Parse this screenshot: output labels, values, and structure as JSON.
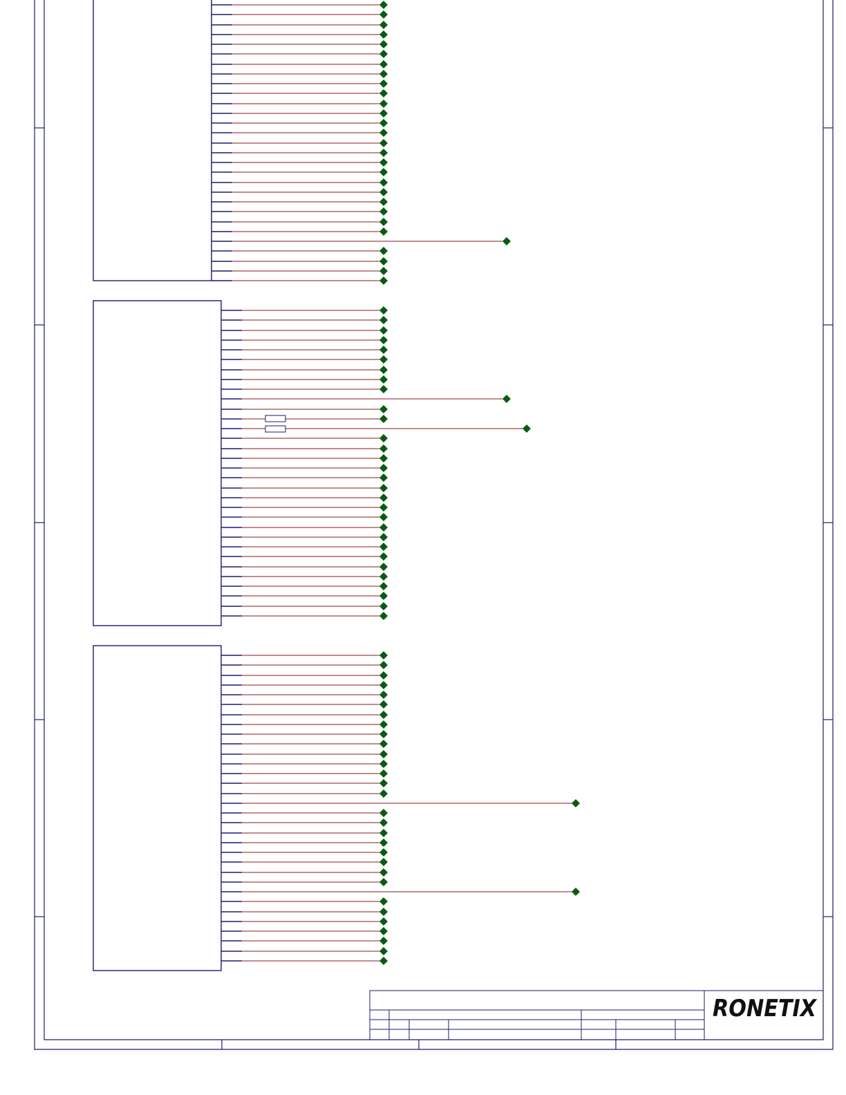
{
  "logo": {
    "text": "RONETIX",
    "color": "#111111"
  },
  "colors": {
    "frame": "#1a1a6e",
    "wire": "#8b1a1a",
    "pad": "#0b5a12"
  },
  "components": [
    {
      "id": "ic-block-1",
      "pins": 29,
      "long_pins": [
        24
      ]
    },
    {
      "id": "ic-block-2",
      "pins": 32,
      "long_pins": [
        9,
        12
      ],
      "series_resistors": [
        11,
        12
      ]
    },
    {
      "id": "ic-block-3",
      "pins": 32,
      "long_pins": [
        15,
        24
      ]
    }
  ]
}
